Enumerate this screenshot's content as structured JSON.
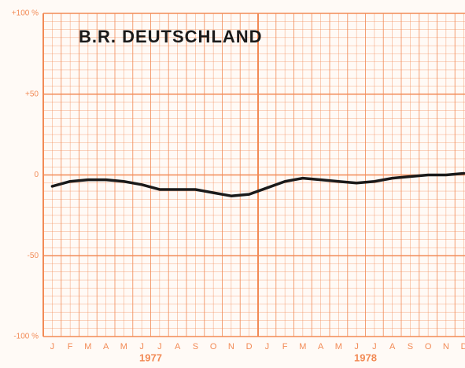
{
  "chart_data": {
    "type": "line",
    "title": "B.R. DEUTSCHLAND",
    "categories": [
      "J",
      "F",
      "M",
      "A",
      "M",
      "J",
      "J",
      "A",
      "S",
      "O",
      "N",
      "D",
      "J",
      "F",
      "M",
      "A",
      "M",
      "J",
      "J",
      "A",
      "S",
      "O",
      "N",
      "D"
    ],
    "years": [
      "1977",
      "1978"
    ],
    "values": [
      -7,
      -4,
      -3,
      -3,
      -4,
      -6,
      -9,
      -9,
      -9,
      -11,
      -13,
      -12,
      -8,
      -4,
      -2,
      -3,
      -4,
      -5,
      -4,
      -2,
      -1,
      0,
      0,
      1
    ],
    "color": "#1a1a1a",
    "grid_color": "#f28a55",
    "ylim": [
      -100,
      100
    ],
    "yticks": [
      {
        "value": -100,
        "label": "-100 %"
      },
      -50,
      0,
      {
        "value": 50,
        "label": "+50"
      },
      {
        "value": 100,
        "label": "+100 %"
      }
    ],
    "grid": true
  }
}
